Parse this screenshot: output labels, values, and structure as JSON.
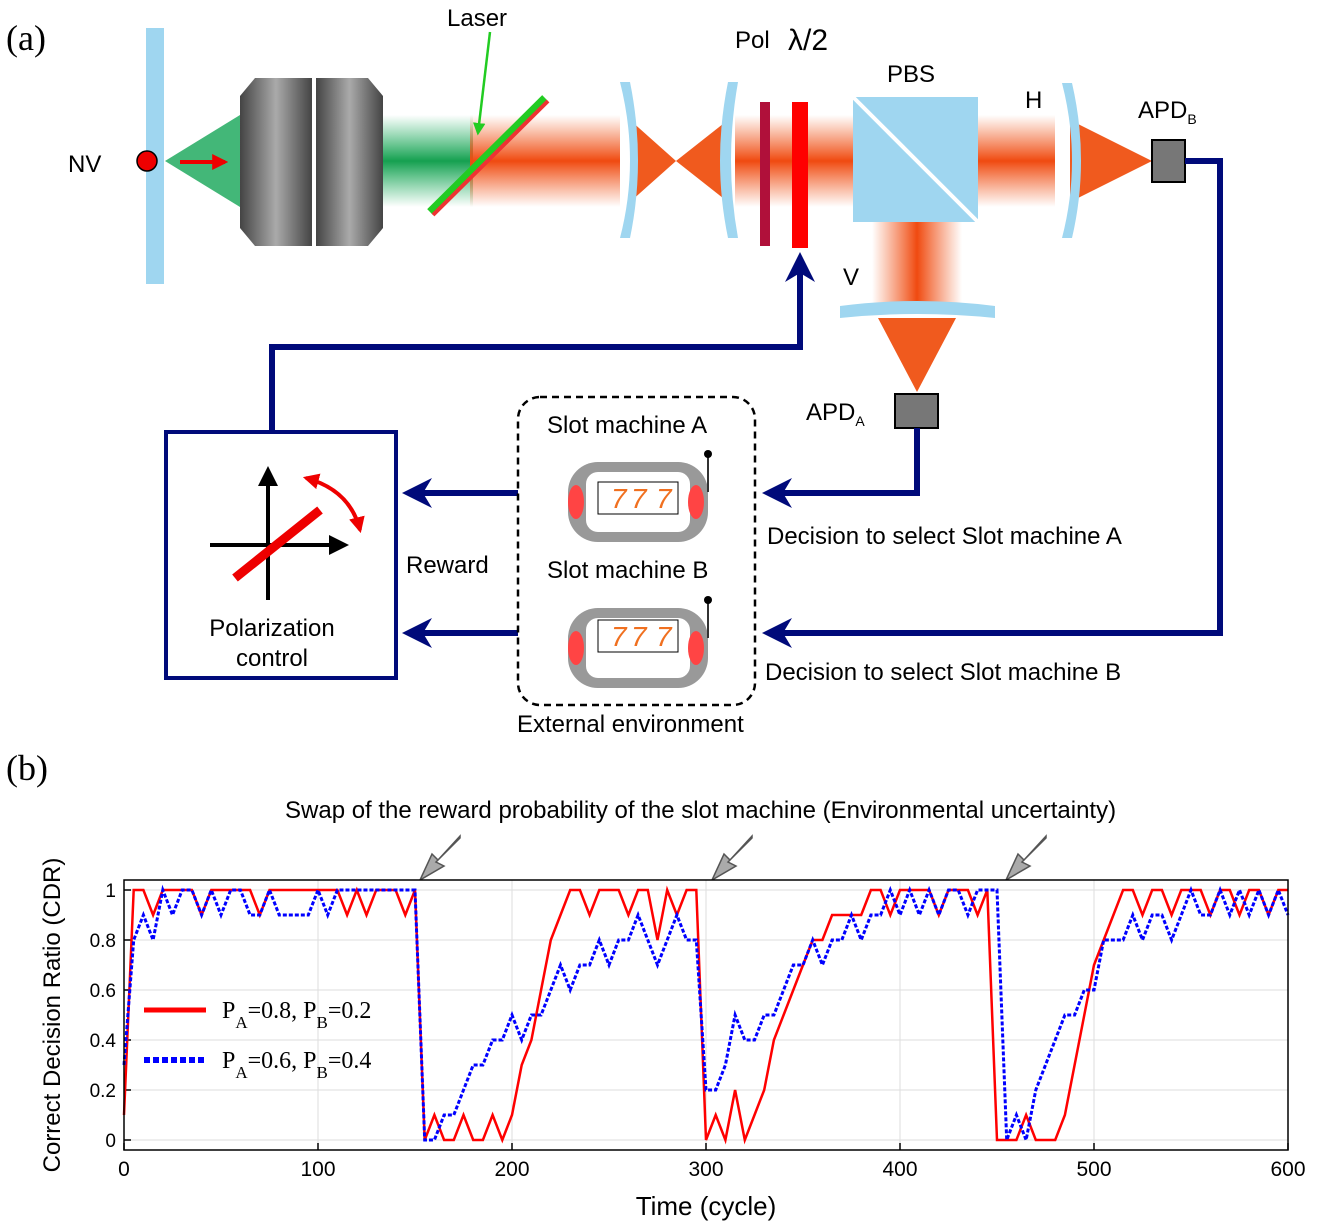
{
  "panel_a": {
    "label": "(a)",
    "nv": "NV",
    "laser": "Laser",
    "pol": "Pol",
    "half_wave": "λ/2",
    "pbs": "PBS",
    "h": "H",
    "v": "V",
    "apd_b": {
      "main": "APD",
      "sub": "B"
    },
    "apd_a": {
      "main": "APD",
      "sub": "A"
    },
    "slot_a": "Slot machine A",
    "slot_b": "Slot machine B",
    "reel_symbol": "7",
    "decision_a": "Decision to select Slot machine A",
    "decision_b": "Decision to select Slot machine B",
    "reward": "Reward",
    "polarization_control": [
      "Polarization",
      "control"
    ],
    "external_environment": "External environment"
  },
  "panel_b": {
    "label": "(b)",
    "annotation": "Swap of the reward probability of the slot machine (Environmental uncertainty)"
  },
  "chart_data": {
    "type": "line",
    "x_label": "Time (cycle)",
    "y_label": "Correct Decision Ratio (CDR)",
    "xlim": [
      0,
      600
    ],
    "xticks": [
      0,
      100,
      200,
      300,
      400,
      500,
      600
    ],
    "ylim": [
      -0.04,
      1.04
    ],
    "yticks": [
      0,
      0.2,
      0.4,
      0.6,
      0.8,
      1
    ],
    "grid": true,
    "legend": "center-left",
    "x": [
      0,
      5,
      10,
      15,
      20,
      25,
      30,
      35,
      40,
      45,
      50,
      55,
      60,
      65,
      70,
      75,
      80,
      85,
      90,
      95,
      100,
      105,
      110,
      115,
      120,
      125,
      130,
      135,
      140,
      145,
      150,
      155,
      160,
      165,
      170,
      175,
      180,
      185,
      190,
      195,
      200,
      205,
      210,
      215,
      220,
      225,
      230,
      235,
      240,
      245,
      250,
      255,
      260,
      265,
      270,
      275,
      280,
      285,
      290,
      295,
      300,
      305,
      310,
      315,
      320,
      325,
      330,
      335,
      340,
      345,
      350,
      355,
      360,
      365,
      370,
      375,
      380,
      385,
      390,
      395,
      400,
      405,
      410,
      415,
      420,
      425,
      430,
      435,
      440,
      445,
      450,
      455,
      460,
      465,
      470,
      475,
      480,
      485,
      490,
      495,
      500,
      505,
      510,
      515,
      520,
      525,
      530,
      535,
      540,
      545,
      550,
      555,
      560,
      565,
      570,
      575,
      580,
      585,
      590,
      595,
      600
    ],
    "series": [
      {
        "name": "PA=0.8, PB=0.2",
        "color": "#ff0000",
        "style": "solid",
        "values": [
          0.1,
          1,
          1,
          0.9,
          1,
          1,
          1,
          1,
          0.9,
          1,
          1,
          1,
          1,
          1,
          0.9,
          1,
          1,
          1,
          1,
          1,
          1,
          1,
          1,
          0.9,
          1,
          0.9,
          1,
          1,
          1,
          0.9,
          1,
          0,
          0.1,
          0,
          0,
          0.1,
          0,
          0,
          0.1,
          0,
          0.1,
          0.3,
          0.4,
          0.6,
          0.8,
          0.9,
          1,
          1,
          0.9,
          1,
          1,
          1,
          0.9,
          1,
          1,
          0.8,
          1,
          0.9,
          1,
          1,
          0,
          0.1,
          0,
          0.2,
          0,
          0.1,
          0.2,
          0.4,
          0.5,
          0.6,
          0.7,
          0.8,
          0.8,
          0.9,
          0.9,
          0.9,
          0.9,
          1,
          1,
          0.9,
          1,
          1,
          1,
          1,
          0.9,
          1,
          1,
          1,
          0.9,
          1,
          0,
          0,
          0,
          0.1,
          0,
          0,
          0,
          0.1,
          0.3,
          0.5,
          0.7,
          0.8,
          0.9,
          1,
          1,
          0.9,
          1,
          1,
          0.9,
          1,
          1,
          1,
          0.9,
          1,
          1,
          0.9,
          1,
          1,
          0.9,
          1,
          1
        ]
      },
      {
        "name": "PA=0.6, PB=0.4",
        "color": "#0000ff",
        "style": "dotted",
        "values": [
          0.3,
          0.8,
          0.9,
          0.8,
          1,
          0.9,
          1,
          1,
          0.9,
          1,
          0.9,
          1,
          1,
          0.9,
          0.9,
          1,
          0.9,
          0.9,
          0.9,
          0.9,
          1,
          0.9,
          1,
          1,
          1,
          1,
          1,
          1,
          1,
          1,
          1,
          0,
          0,
          0.1,
          0.1,
          0.2,
          0.3,
          0.3,
          0.4,
          0.4,
          0.5,
          0.4,
          0.5,
          0.5,
          0.6,
          0.7,
          0.6,
          0.7,
          0.7,
          0.8,
          0.7,
          0.8,
          0.8,
          0.9,
          0.8,
          0.7,
          0.8,
          0.9,
          0.8,
          0.8,
          0.2,
          0.2,
          0.3,
          0.5,
          0.4,
          0.4,
          0.5,
          0.5,
          0.6,
          0.7,
          0.7,
          0.8,
          0.7,
          0.8,
          0.8,
          0.9,
          0.8,
          0.9,
          0.9,
          1,
          0.9,
          1,
          0.9,
          1,
          0.9,
          1,
          1,
          0.9,
          1,
          1,
          1,
          0,
          0.1,
          0,
          0.2,
          0.3,
          0.4,
          0.5,
          0.5,
          0.6,
          0.6,
          0.8,
          0.8,
          0.8,
          0.9,
          0.8,
          0.9,
          0.9,
          0.8,
          0.9,
          1,
          0.9,
          0.9,
          1,
          0.9,
          1,
          0.9,
          1,
          0.9,
          1,
          0.9
        ]
      }
    ]
  }
}
